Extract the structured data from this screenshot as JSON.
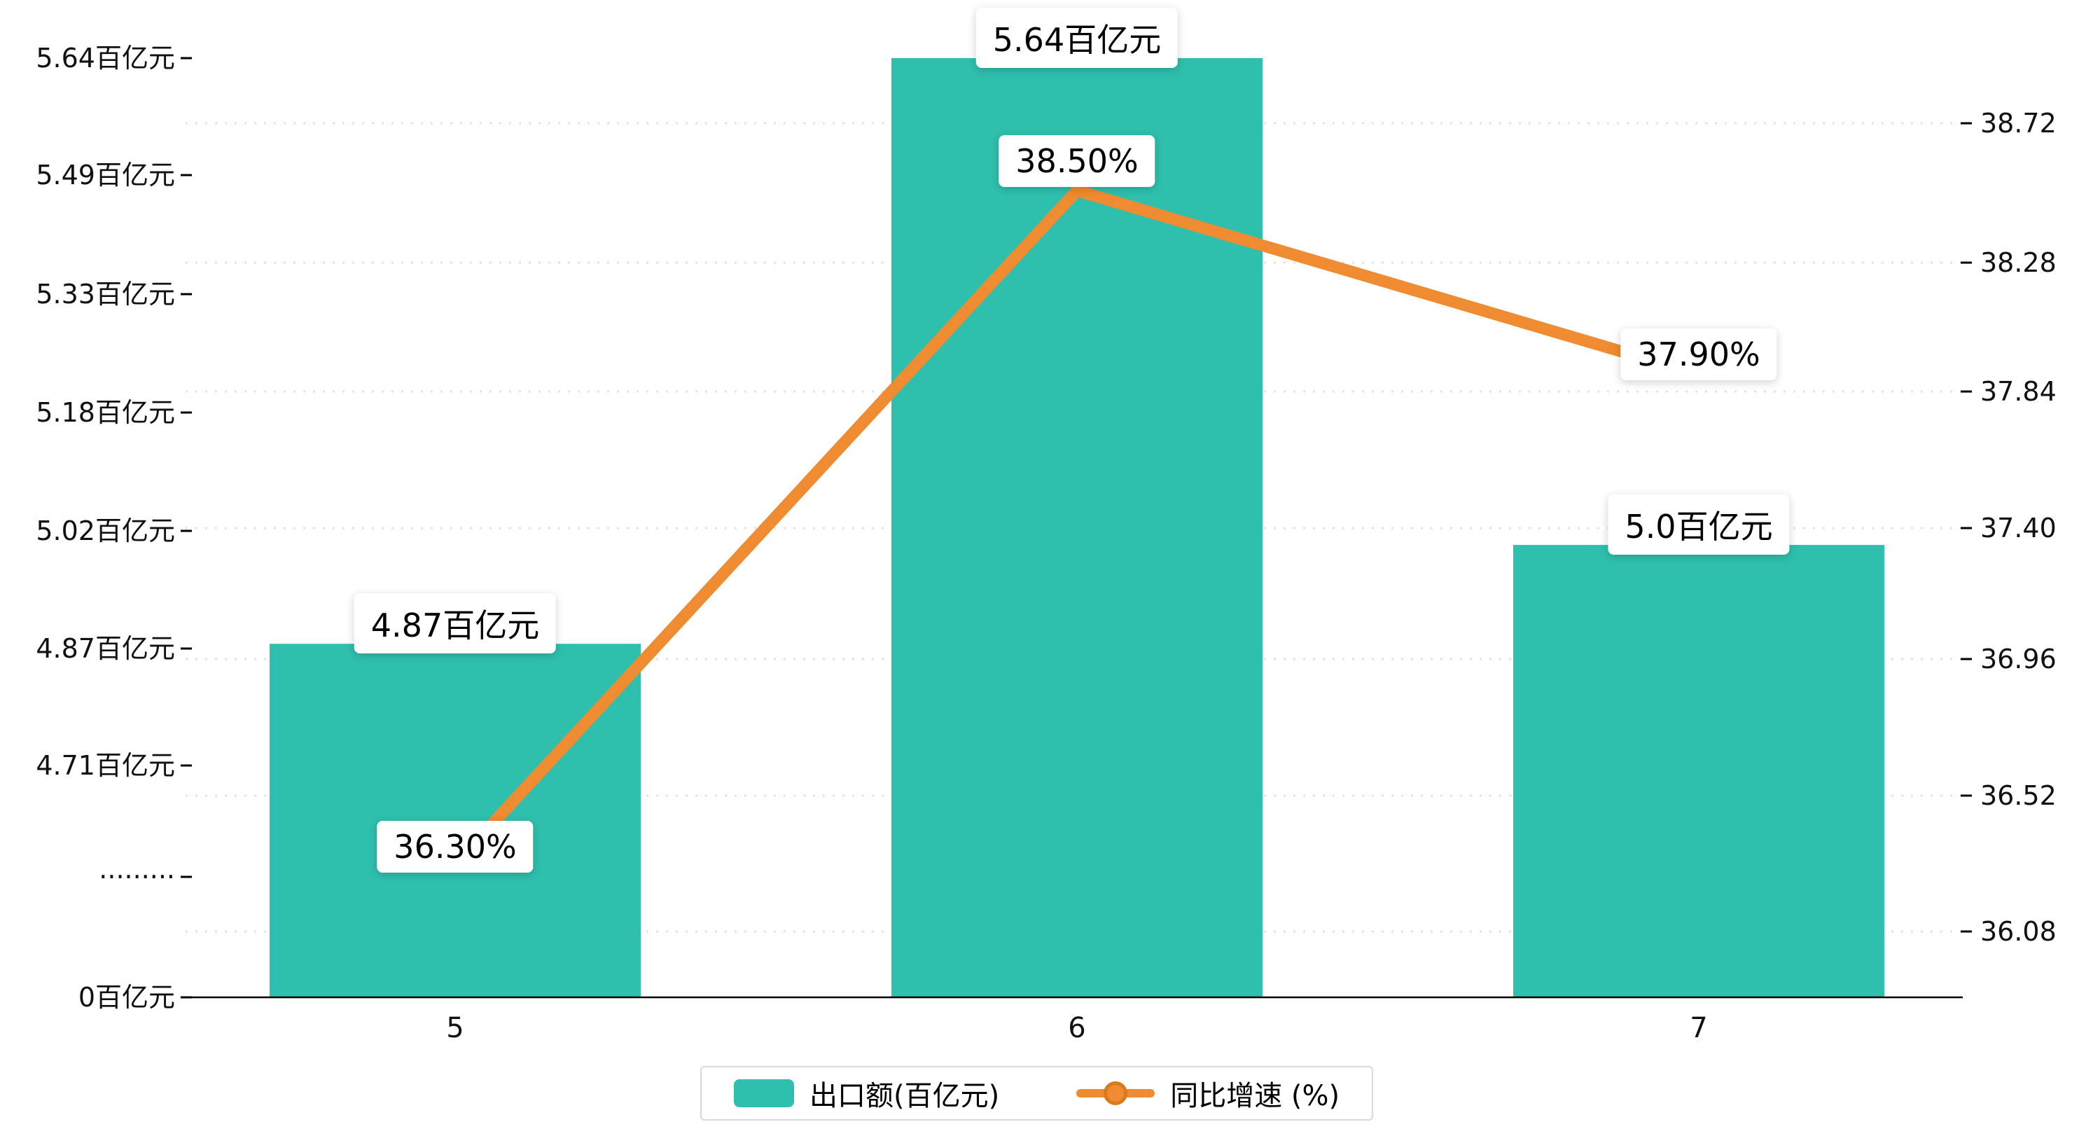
{
  "chart_data": {
    "type": "bar+line",
    "categories": [
      "5",
      "6",
      "7"
    ],
    "series": [
      {
        "name": "出口额(百亿元)",
        "type": "bar",
        "values": [
          4.87,
          5.64,
          5.0
        ],
        "point_labels": [
          "4.87百亿元",
          "5.64百亿元",
          "5.0百亿元"
        ],
        "color": "#2fbfad"
      },
      {
        "name": "同比增速 (%)",
        "type": "line",
        "values": [
          36.3,
          38.5,
          37.9
        ],
        "point_labels": [
          "36.30%",
          "38.50%",
          "37.90%"
        ],
        "color": "#ef8b30",
        "marker_ring_color": "#d97a1f"
      }
    ],
    "left_axis": {
      "tick_labels": [
        "5.64百亿元",
        "5.49百亿元",
        "5.33百亿元",
        "5.18百亿元",
        "5.02百亿元",
        "4.87百亿元",
        "4.71百亿元",
        "·········",
        "0百亿元"
      ],
      "broken_axis": true,
      "value_range_top_segment": [
        4.71,
        5.64
      ],
      "base_value": 0
    },
    "right_axis": {
      "tick_labels": [
        "38.72",
        "38.28",
        "37.84",
        "37.40",
        "36.96",
        "36.52",
        "36.08"
      ],
      "value_range": [
        36.08,
        38.72
      ]
    },
    "grid": "dashed-horizontal",
    "legend_position": "bottom-center",
    "legend": [
      {
        "label": "出口额(百亿元)"
      },
      {
        "label": "同比增速 (%)"
      }
    ],
    "colors": {
      "bar": "#2fbfad",
      "line": "#ef8b30",
      "gridline": "#cfcfcf",
      "axis": "#000000",
      "label_box_bg": "#ffffff"
    }
  }
}
